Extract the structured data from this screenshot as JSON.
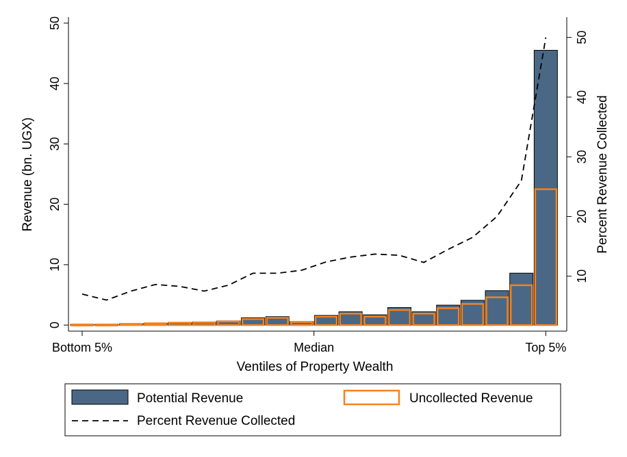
{
  "chart_data": {
    "type": "bar",
    "categories": [
      "1",
      "2",
      "3",
      "4",
      "5",
      "6",
      "7",
      "8",
      "9",
      "10",
      "11",
      "12",
      "13",
      "14",
      "15",
      "16",
      "17",
      "18",
      "19",
      "20"
    ],
    "x_tick_labels": [
      "Bottom 5%",
      "Median",
      "Top 5%"
    ],
    "x_tick_positions": [
      1,
      10.5,
      20
    ],
    "xlabel": "Ventiles of Property Wealth",
    "ylabel": "Revenue (bn. UGX)",
    "ylabel_right": "Percent Revenue Collected",
    "ylim": [
      -1,
      51
    ],
    "yticks": [
      0,
      10,
      20,
      30,
      40,
      50
    ],
    "ylim_right": [
      0.8,
      53.4
    ],
    "yticks_right": [
      10,
      20,
      30,
      40,
      50
    ],
    "series": [
      {
        "name": "Potential Revenue",
        "kind": "bar",
        "axis": "left",
        "color": "#4a6885",
        "values": [
          0.1,
          0.1,
          0.2,
          0.3,
          0.4,
          0.5,
          0.7,
          1.2,
          1.4,
          0.6,
          1.6,
          2.2,
          1.7,
          2.9,
          2.2,
          3.3,
          4.1,
          5.7,
          8.6,
          45.5
        ]
      },
      {
        "name": "Uncollected Revenue",
        "kind": "bar-outline",
        "axis": "left",
        "color": "#f5821f",
        "values": [
          0.1,
          0.1,
          0.2,
          0.3,
          0.4,
          0.4,
          0.6,
          1.0,
          1.2,
          0.5,
          1.4,
          1.9,
          1.4,
          2.5,
          1.9,
          2.8,
          3.5,
          4.6,
          6.6,
          22.5
        ]
      },
      {
        "name": "Percent Revenue Collected",
        "kind": "line",
        "axis": "right",
        "style": "dashed",
        "color": "#000000",
        "values": [
          7.0,
          6.0,
          7.5,
          8.6,
          8.3,
          7.5,
          8.5,
          10.5,
          10.5,
          11.0,
          12.4,
          13.2,
          13.7,
          13.5,
          12.3,
          14.5,
          16.5,
          20.0,
          26.0,
          50.0
        ]
      }
    ],
    "legend": {
      "position": "bottom",
      "entries": [
        "Potential Revenue",
        "Uncollected Revenue",
        "Percent Revenue Collected"
      ]
    }
  }
}
